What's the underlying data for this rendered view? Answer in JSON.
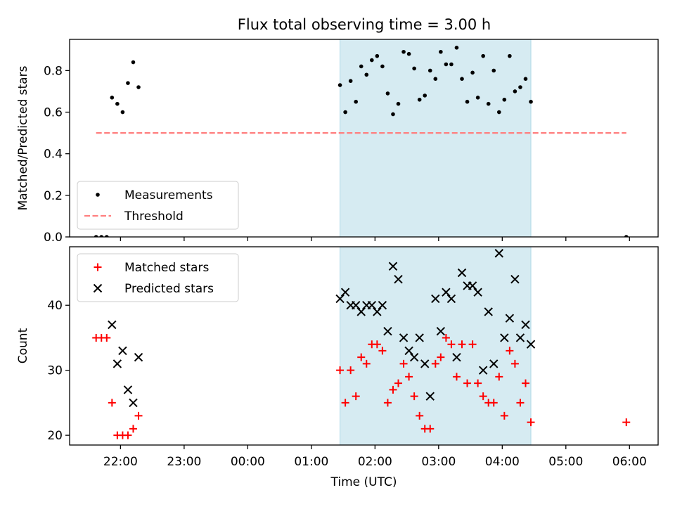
{
  "title": "Flux total observing time = 3.00 h",
  "chart_data": [
    {
      "type": "scatter",
      "ylabel": "Matched/Predicted stars",
      "ylim": [
        0.0,
        0.95
      ],
      "yticks": [
        "0.0",
        "0.2",
        "0.4",
        "0.6",
        "0.8"
      ],
      "ytick_values": [
        0.0,
        0.2,
        0.4,
        0.6,
        0.8
      ],
      "legend_position": "lower-left",
      "highlight_span": {
        "x": [
          "01:27",
          "04:27"
        ],
        "color": "#add8e6"
      },
      "series": [
        {
          "name": "Measurements",
          "marker": "dot",
          "color": "#000000",
          "points": [
            [
              "21:37",
              0.0
            ],
            [
              "21:42",
              0.0
            ],
            [
              "21:47",
              0.0
            ],
            [
              "21:52",
              0.67
            ],
            [
              "21:57",
              0.64
            ],
            [
              "22:02",
              0.6
            ],
            [
              "22:07",
              0.74
            ],
            [
              "22:12",
              0.84
            ],
            [
              "22:17",
              0.72
            ],
            [
              "01:27",
              0.73
            ],
            [
              "01:32",
              0.6
            ],
            [
              "01:37",
              0.75
            ],
            [
              "01:42",
              0.65
            ],
            [
              "01:47",
              0.82
            ],
            [
              "01:52",
              0.78
            ],
            [
              "01:57",
              0.85
            ],
            [
              "02:02",
              0.87
            ],
            [
              "02:07",
              0.82
            ],
            [
              "02:12",
              0.69
            ],
            [
              "02:17",
              0.59
            ],
            [
              "02:22",
              0.64
            ],
            [
              "02:27",
              0.89
            ],
            [
              "02:32",
              0.88
            ],
            [
              "02:37",
              0.81
            ],
            [
              "02:42",
              0.66
            ],
            [
              "02:47",
              0.68
            ],
            [
              "02:52",
              0.8
            ],
            [
              "02:57",
              0.76
            ],
            [
              "03:02",
              0.89
            ],
            [
              "03:07",
              0.83
            ],
            [
              "03:12",
              0.83
            ],
            [
              "03:17",
              0.91
            ],
            [
              "03:22",
              0.76
            ],
            [
              "03:27",
              0.65
            ],
            [
              "03:32",
              0.79
            ],
            [
              "03:37",
              0.67
            ],
            [
              "03:42",
              0.87
            ],
            [
              "03:47",
              0.64
            ],
            [
              "03:52",
              0.8
            ],
            [
              "03:57",
              0.6
            ],
            [
              "04:02",
              0.66
            ],
            [
              "04:07",
              0.87
            ],
            [
              "04:12",
              0.7
            ],
            [
              "04:17",
              0.72
            ],
            [
              "04:22",
              0.76
            ],
            [
              "04:27",
              0.65
            ],
            [
              "05:57",
              0.0
            ]
          ]
        },
        {
          "name": "Threshold",
          "line": "dashed",
          "color": "#ff7f7f",
          "points": [
            [
              "21:37",
              0.5
            ],
            [
              "05:57",
              0.5
            ]
          ]
        }
      ]
    },
    {
      "type": "scatter",
      "xlabel": "Time (UTC)",
      "ylabel": "Count",
      "ylim": [
        18.5,
        49.0
      ],
      "yticks": [
        "20",
        "30",
        "40"
      ],
      "ytick_values": [
        20,
        30,
        40
      ],
      "xlim": [
        "21:12",
        "06:27"
      ],
      "xticks": [
        "22:00",
        "23:00",
        "00:00",
        "01:00",
        "02:00",
        "03:00",
        "04:00",
        "05:00",
        "06:00"
      ],
      "legend_position": "upper-left",
      "highlight_span": {
        "x": [
          "01:27",
          "04:27"
        ],
        "color": "#add8e6"
      },
      "series": [
        {
          "name": "Matched stars",
          "marker": "plus",
          "color": "#ff0000",
          "points": [
            [
              "21:37",
              35
            ],
            [
              "21:42",
              35
            ],
            [
              "21:47",
              35
            ],
            [
              "21:52",
              25
            ],
            [
              "21:57",
              20
            ],
            [
              "22:02",
              20
            ],
            [
              "22:07",
              20
            ],
            [
              "22:12",
              21
            ],
            [
              "22:17",
              23
            ],
            [
              "01:27",
              30
            ],
            [
              "01:32",
              25
            ],
            [
              "01:37",
              30
            ],
            [
              "01:42",
              26
            ],
            [
              "01:47",
              32
            ],
            [
              "01:52",
              31
            ],
            [
              "01:57",
              34
            ],
            [
              "02:02",
              34
            ],
            [
              "02:07",
              33
            ],
            [
              "02:12",
              25
            ],
            [
              "02:17",
              27
            ],
            [
              "02:22",
              28
            ],
            [
              "02:27",
              31
            ],
            [
              "02:32",
              29
            ],
            [
              "02:37",
              26
            ],
            [
              "02:42",
              23
            ],
            [
              "02:47",
              21
            ],
            [
              "02:52",
              21
            ],
            [
              "02:57",
              31
            ],
            [
              "03:02",
              32
            ],
            [
              "03:07",
              35
            ],
            [
              "03:12",
              34
            ],
            [
              "03:17",
              29
            ],
            [
              "03:22",
              34
            ],
            [
              "03:27",
              28
            ],
            [
              "03:32",
              34
            ],
            [
              "03:37",
              28
            ],
            [
              "03:42",
              26
            ],
            [
              "03:47",
              25
            ],
            [
              "03:52",
              25
            ],
            [
              "03:57",
              29
            ],
            [
              "04:02",
              23
            ],
            [
              "04:07",
              33
            ],
            [
              "04:12",
              31
            ],
            [
              "04:17",
              25
            ],
            [
              "04:22",
              28
            ],
            [
              "04:27",
              22
            ],
            [
              "05:57",
              22
            ]
          ]
        },
        {
          "name": "Predicted stars",
          "marker": "x",
          "color": "#000000",
          "points": [
            [
              "21:52",
              37
            ],
            [
              "21:57",
              31
            ],
            [
              "22:02",
              33
            ],
            [
              "22:07",
              27
            ],
            [
              "22:12",
              25
            ],
            [
              "22:17",
              32
            ],
            [
              "01:27",
              41
            ],
            [
              "01:32",
              42
            ],
            [
              "01:37",
              40
            ],
            [
              "01:42",
              40
            ],
            [
              "01:47",
              39
            ],
            [
              "01:52",
              40
            ],
            [
              "01:57",
              40
            ],
            [
              "02:02",
              39
            ],
            [
              "02:07",
              40
            ],
            [
              "02:12",
              36
            ],
            [
              "02:17",
              46
            ],
            [
              "02:22",
              44
            ],
            [
              "02:27",
              35
            ],
            [
              "02:32",
              33
            ],
            [
              "02:37",
              32
            ],
            [
              "02:42",
              35
            ],
            [
              "02:47",
              31
            ],
            [
              "02:52",
              26
            ],
            [
              "02:57",
              41
            ],
            [
              "03:02",
              36
            ],
            [
              "03:07",
              42
            ],
            [
              "03:12",
              41
            ],
            [
              "03:17",
              32
            ],
            [
              "03:22",
              45
            ],
            [
              "03:27",
              43
            ],
            [
              "03:32",
              43
            ],
            [
              "03:37",
              42
            ],
            [
              "03:42",
              30
            ],
            [
              "03:47",
              39
            ],
            [
              "03:52",
              31
            ],
            [
              "03:57",
              48
            ],
            [
              "04:02",
              35
            ],
            [
              "04:07",
              38
            ],
            [
              "04:12",
              44
            ],
            [
              "04:17",
              35
            ],
            [
              "04:22",
              37
            ],
            [
              "04:27",
              34
            ]
          ]
        }
      ]
    }
  ]
}
